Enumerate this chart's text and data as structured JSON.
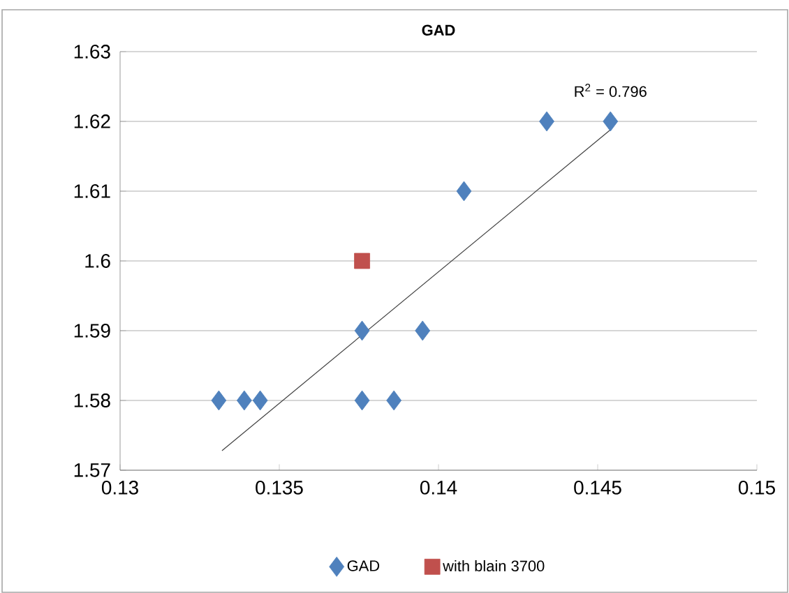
{
  "chart_data": {
    "type": "scatter",
    "title": "GAD",
    "series": [
      {
        "name": "GAD",
        "color": "#4f81bd",
        "marker": "diamond",
        "x": [
          0.1331,
          0.1339,
          0.1344,
          0.1376,
          0.1386,
          0.1376,
          0.1395,
          0.1408,
          0.1434,
          0.1454
        ],
        "values": [
          1.58,
          1.58,
          1.58,
          1.58,
          1.58,
          1.59,
          1.59,
          1.61,
          1.62,
          1.62
        ]
      },
      {
        "name": "with blain 3700",
        "color": "#c0504d",
        "marker": "square",
        "x": [
          0.1376
        ],
        "values": [
          1.6
        ]
      },
      {
        "type": "line",
        "color": "#404040",
        "marker": "none",
        "x": [
          0.1332,
          0.1454
        ],
        "values": [
          1.5728,
          1.6188
        ]
      }
    ],
    "annotations": [
      "R$^{2}$ = 0.796"
    ],
    "xlim": [
      0.13,
      0.15
    ],
    "xticks": [
      0.13,
      0.135,
      0.14,
      0.145,
      0.15
    ],
    "ylim": [
      1.57,
      1.63
    ],
    "yticks": [
      1.57,
      1.58,
      1.59,
      1.6,
      1.61,
      1.62,
      1.63
    ],
    "grid": "y",
    "legend": "bottom"
  }
}
